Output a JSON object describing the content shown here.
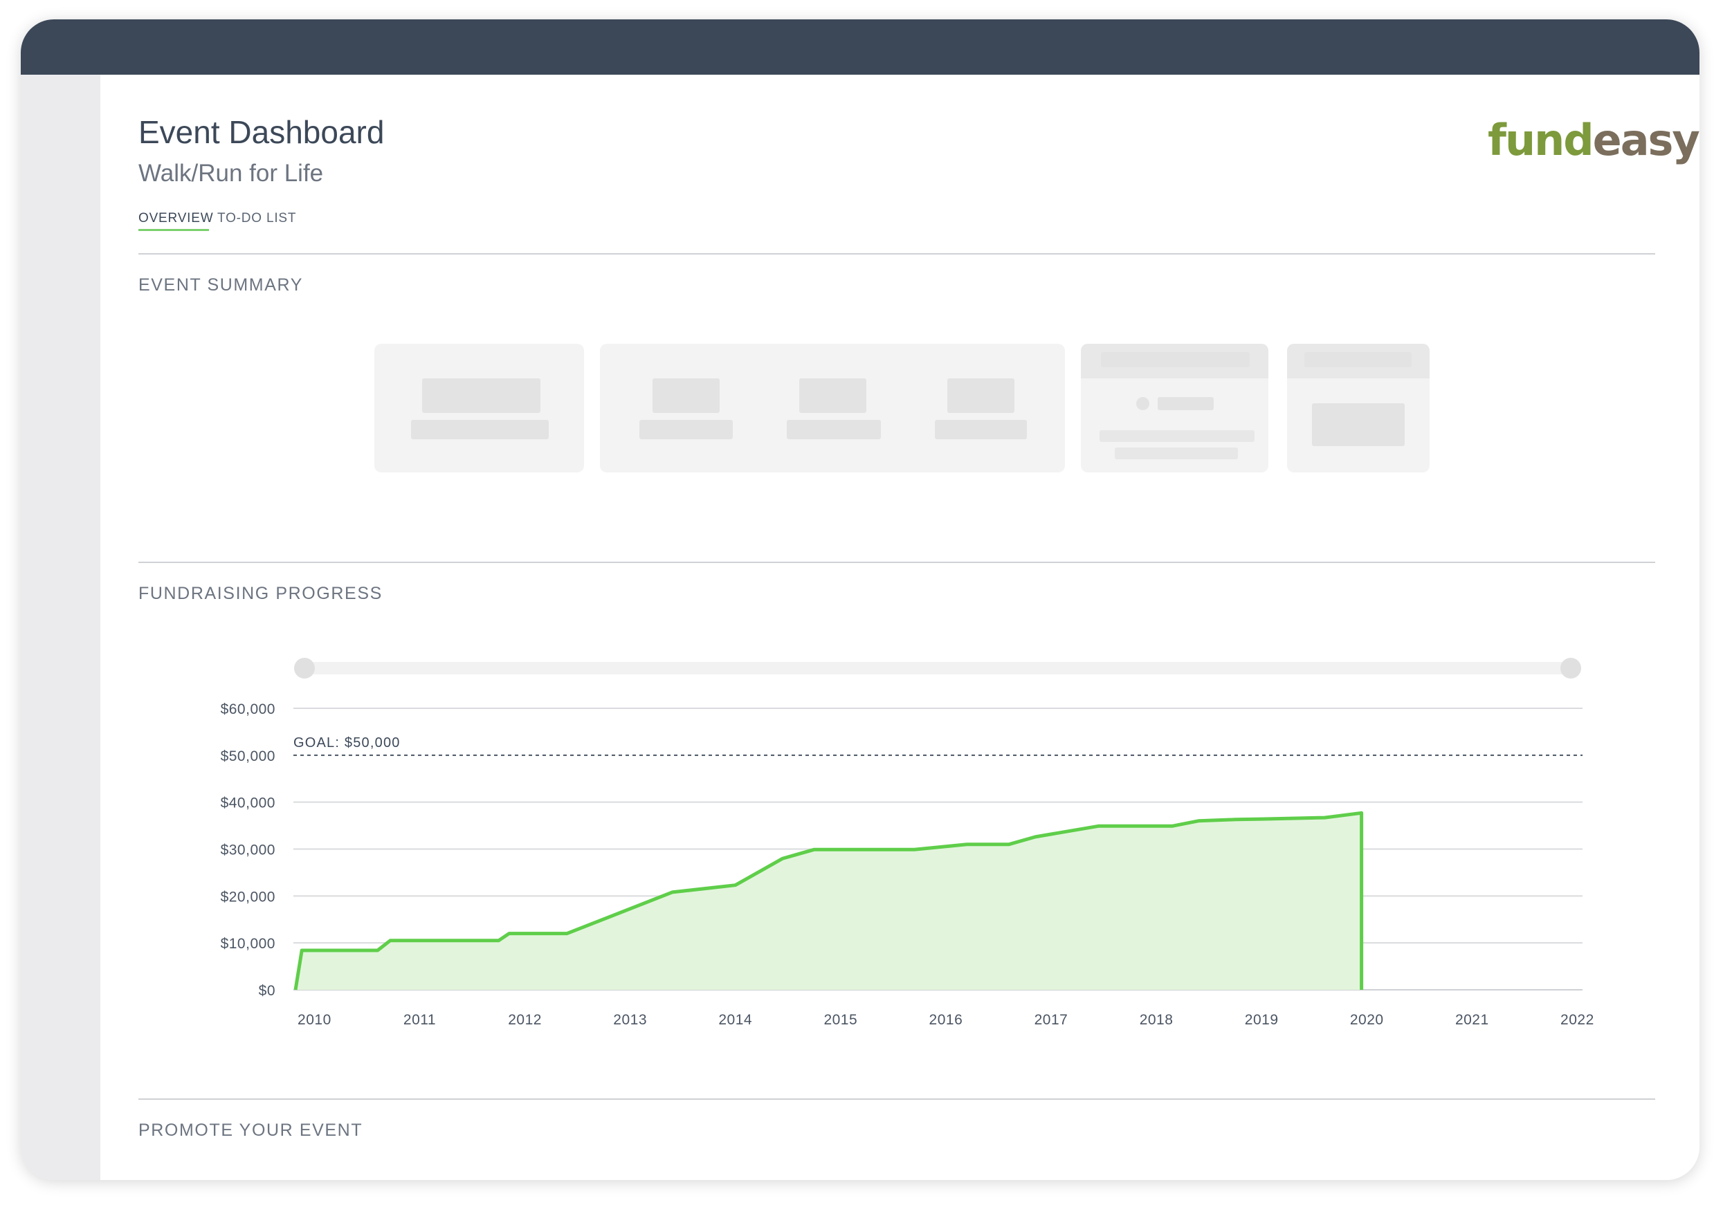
{
  "header": {
    "title": "Event Dashboard",
    "subtitle": "Walk/Run for Life"
  },
  "logo": {
    "part1": "fund",
    "part2": "easy",
    "color_part1": "#7d9a3c",
    "color_part2": "#7b6e5c"
  },
  "tabs": [
    {
      "label": "OVERVIEW",
      "active": true
    },
    {
      "label": "TO-DO LIST",
      "active": false
    }
  ],
  "sections": {
    "event_summary": "EVENT SUMMARY",
    "fundraising_progress": "FUNDRAISING PROGRESS",
    "promote": "PROMOTE YOUR EVENT"
  },
  "colors": {
    "topbar": "#3c4858",
    "accent": "#5fce4a",
    "area_fill": "#e2f5dc"
  },
  "chart_data": {
    "type": "area",
    "title": "",
    "xlabel": "",
    "ylabel": "",
    "grid": true,
    "range_slider": true,
    "x_ticks": [
      "2010",
      "2011",
      "2012",
      "2013",
      "2014",
      "2015",
      "2016",
      "2017",
      "2018",
      "2019",
      "2020",
      "2021",
      "2022"
    ],
    "xlim": [
      2009.8,
      2022.05
    ],
    "y_ticks": [
      0,
      10000,
      20000,
      30000,
      40000,
      50000,
      60000
    ],
    "y_tick_labels": [
      "$0",
      "$10,000",
      "$20,000",
      "$30,000",
      "$40,000",
      "$50,000",
      "$60,000"
    ],
    "ylim": [
      0,
      60000
    ],
    "goal": {
      "value": 50000,
      "label": "GOAL: $50,000"
    },
    "series": [
      {
        "x": [
          2009.82,
          2009.88,
          2010.6,
          2010.72,
          2011.75,
          2011.85,
          2012.4,
          2013.4,
          2014.0,
          2014.45,
          2014.75,
          2015.7,
          2016.2,
          2016.6,
          2016.85,
          2017.45,
          2018.15,
          2018.4,
          2018.75,
          2019.0,
          2019.6,
          2019.95,
          2019.95
        ],
        "y": [
          0,
          8400,
          8400,
          10500,
          10500,
          12000,
          12000,
          20800,
          22300,
          28000,
          29900,
          29900,
          31000,
          31000,
          32600,
          34900,
          34900,
          36000,
          36300,
          36400,
          36700,
          37700,
          0
        ],
        "color": "#5fce4a"
      }
    ]
  }
}
